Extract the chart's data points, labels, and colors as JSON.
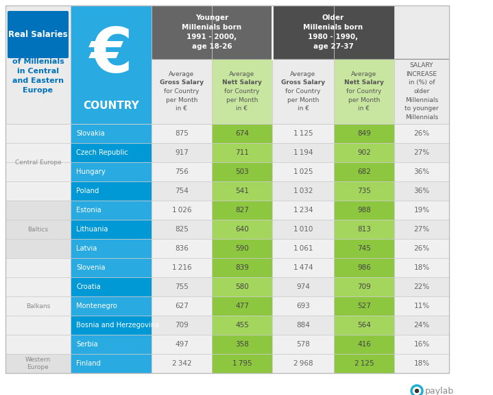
{
  "header1": "Younger\nMillenials born\n1991 - 2000,\nage 18-26",
  "header2": "Older\nMillenials born\n1980 - 1990,\nage 27-37",
  "col_headers": [
    "Average\n**Gross Salary**\nfor Country\nper Month\nin €",
    "Average\n**Nett Salary**\nfor Country\nper Month\nin €",
    "Average\n**Gross Salary**\nfor Country\nper Month\nin €",
    "Average\n**Nett Salary**\nfor Country\nper Month\nin €",
    "SALARY\nINCREASE\nin (%) of\nolder\nMillennials\nto younger\nMillennials"
  ],
  "col_headers_plain": [
    [
      "Average",
      "Gross Salary",
      "for Country",
      "per Month",
      "in €"
    ],
    [
      "Average",
      "Nett Salary",
      "for Country",
      "per Month",
      "in €"
    ],
    [
      "Average",
      "Gross Salary",
      "for Country",
      "per Month",
      "in €"
    ],
    [
      "Average",
      "Nett Salary",
      "for Country",
      "per Month",
      "in €"
    ],
    [
      "SALARY",
      "INCREASE",
      "in (%) of",
      "older",
      "Millennials",
      "to younger",
      "Millennials"
    ]
  ],
  "col_bold_row": [
    1,
    1,
    1,
    1,
    -1
  ],
  "regions": [
    "Central Europe",
    "Baltics",
    "Balkans",
    "Western\nEurope"
  ],
  "region_row_spans": [
    4,
    3,
    5,
    1
  ],
  "countries": [
    "Slovakia",
    "Czech Republic",
    "Hungary",
    "Poland",
    "Estonia",
    "Lithuania",
    "Latvia",
    "Slovenia",
    "Croatia",
    "Montenegro",
    "Bosnia and Herzegovina",
    "Serbia",
    "Finland"
  ],
  "data": [
    [
      875,
      674,
      1125,
      849,
      "26%"
    ],
    [
      917,
      711,
      1194,
      902,
      "27%"
    ],
    [
      756,
      503,
      1025,
      682,
      "36%"
    ],
    [
      754,
      541,
      1032,
      735,
      "36%"
    ],
    [
      1026,
      827,
      1234,
      988,
      "19%"
    ],
    [
      825,
      640,
      1010,
      813,
      "27%"
    ],
    [
      836,
      590,
      1061,
      745,
      "26%"
    ],
    [
      1216,
      839,
      1474,
      986,
      "18%"
    ],
    [
      755,
      580,
      974,
      709,
      "22%"
    ],
    [
      627,
      477,
      693,
      527,
      "11%"
    ],
    [
      709,
      455,
      884,
      564,
      "24%"
    ],
    [
      497,
      358,
      578,
      416,
      "16%"
    ],
    [
      2342,
      1795,
      2968,
      2125,
      "18%"
    ]
  ],
  "title_line1": "Real Salaries",
  "title_rest": "of Millenials\nin Central\nand Eastern\nEurope",
  "blue_light": "#29ABE2",
  "blue_mid": "#0099D6",
  "blue_dark": "#0072BC",
  "gray_header1": "#666666",
  "gray_header2": "#4D4D4D",
  "gray_region_light": "#E8E8E8",
  "gray_region_dark": "#D8D8D8",
  "green_bright": "#8DC63F",
  "green_light": "#A4D65E",
  "white": "#FFFFFF",
  "text_dark": "#666666",
  "text_white": "#FFFFFF",
  "text_blue": "#29ABE2"
}
